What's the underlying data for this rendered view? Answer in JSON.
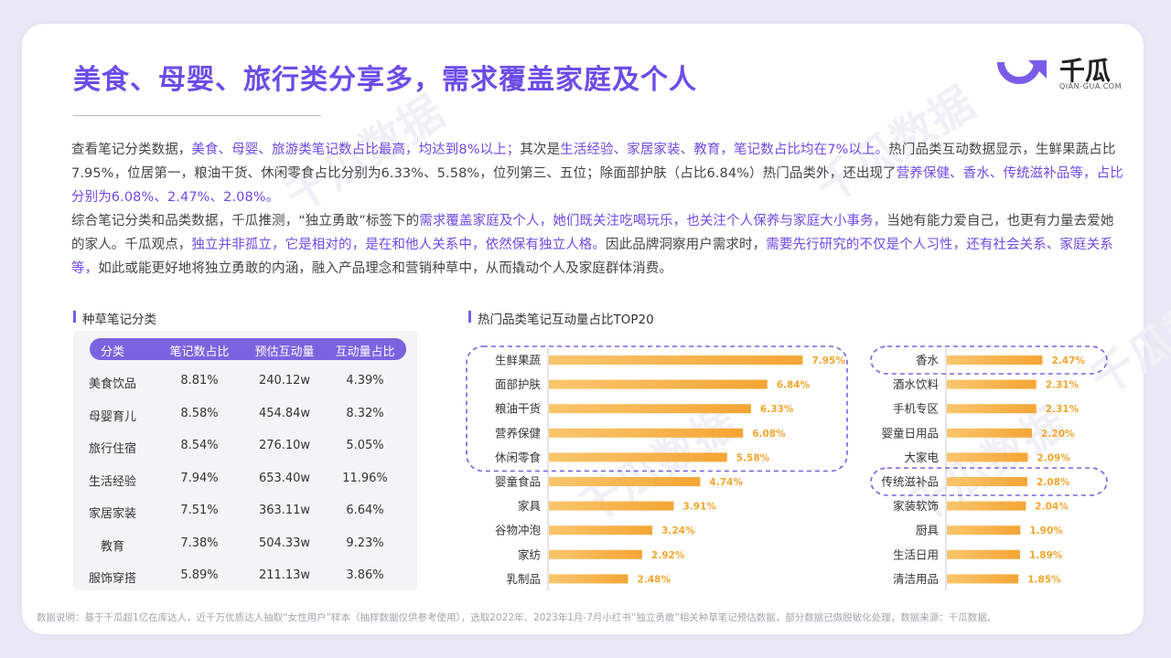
{
  "title": "美食、母婴、旅行类分享多，需求覆盖家庭及个人",
  "logo": {
    "name": "千瓜",
    "domain": "QIAN-GUA.COM"
  },
  "watermark": "千瓜数据",
  "paragraph1": [
    {
      "t": "查看笔记分类数据，",
      "h": false
    },
    {
      "t": "美食、母婴、旅游类笔记数占比最高，均达到8%以上；",
      "h": true
    },
    {
      "t": "其次是",
      "h": false
    },
    {
      "t": "生活经验、家居家装、教育，笔记数占比均在7%以上。",
      "h": true
    },
    {
      "t": "热门品类互动数据显示，生鲜果蔬占比7.95%，位居第一，粮油干货、休闲零食占比分别为6.33%、5.58%，位列第三、五位；除面部护肤（占比6.84%）热门品类外，还出现了",
      "h": false
    },
    {
      "t": "营养保健、香水、传统滋补品等，占比分别为6.08%、2.47%、2.08%。",
      "h": true
    }
  ],
  "paragraph2": [
    {
      "t": "综合笔记分类和品类数据，千瓜推测，“独立勇敢”标签下的",
      "h": false
    },
    {
      "t": "需求覆盖家庭及个人，她们既关注吃喝玩乐，也关注个人保养与家庭大小事务，",
      "h": true
    },
    {
      "t": "当她有能力爱自己，也更有力量去爱她的家人。千瓜观点，",
      "h": false
    },
    {
      "t": "独立并非孤立，它是相对的，是在和他人关系中，依然保有独立人格。",
      "h": true
    },
    {
      "t": "因此品牌洞察用户需求时，",
      "h": false
    },
    {
      "t": "需要先行研究的不仅是个人习性，还有社会关系、家庭关系等，",
      "h": true
    },
    {
      "t": "如此或能更好地将独立勇敢的内涵，融入产品理念和营销种草中，从而撬动个人及家庭群体消费。",
      "h": false
    }
  ],
  "table_section_title": "种草笔记分类",
  "chart_section_title": "热门品类笔记互动量占比TOP20",
  "table": {
    "headers": [
      "分类",
      "笔记数占比",
      "预估互动量",
      "互动量占比"
    ],
    "rows": [
      [
        "美食饮品",
        "8.81%",
        "240.12w",
        "4.39%"
      ],
      [
        "母婴育儿",
        "8.58%",
        "454.84w",
        "8.32%"
      ],
      [
        "旅行住宿",
        "8.54%",
        "276.10w",
        "5.05%"
      ],
      [
        "生活经验",
        "7.94%",
        "653.40w",
        "11.96%"
      ],
      [
        "家居家装",
        "7.51%",
        "363.11w",
        "6.64%"
      ],
      [
        "教育",
        "7.38%",
        "504.33w",
        "9.23%"
      ],
      [
        "服饰穿搭",
        "5.89%",
        "211.13w",
        "3.86%"
      ]
    ]
  },
  "chart_data": [
    {
      "type": "bar",
      "orientation": "horizontal",
      "categories": [
        "生鲜果蔬",
        "面部护肤",
        "粮油干货",
        "营养保健",
        "休闲零食",
        "婴童食品",
        "家具",
        "谷物冲泡",
        "家纺",
        "乳制品"
      ],
      "values": [
        7.95,
        6.84,
        6.33,
        6.08,
        5.58,
        4.74,
        3.91,
        3.24,
        2.92,
        2.48
      ],
      "labels": [
        "7.95%",
        "6.84%",
        "6.33%",
        "6.08%",
        "5.58%",
        "4.74%",
        "3.91%",
        "3.24%",
        "2.92%",
        "2.48%"
      ],
      "highlighted": [
        "生鲜果蔬",
        "面部护肤",
        "粮油干货",
        "营养保健",
        "休闲零食"
      ],
      "bar_color": "#f7b24a",
      "highlight_color": "#7b63e0"
    },
    {
      "type": "bar",
      "orientation": "horizontal",
      "categories": [
        "香水",
        "酒水饮料",
        "手机专区",
        "婴童日用品",
        "大家电",
        "传统滋补品",
        "家装软饰",
        "厨具",
        "生活日用",
        "清洁用品"
      ],
      "values": [
        2.47,
        2.31,
        2.31,
        2.2,
        2.09,
        2.08,
        2.04,
        1.9,
        1.89,
        1.85
      ],
      "labels": [
        "2.47%",
        "2.31%",
        "2.31%",
        "2.20%",
        "2.09%",
        "2.08%",
        "2.04%",
        "1.90%",
        "1.89%",
        "1.85%"
      ],
      "highlighted": [
        "香水",
        "传统滋补品"
      ],
      "bar_color": "#f7b24a",
      "highlight_color": "#7b63e0"
    }
  ],
  "footer": "数据说明：基于千瓜超1亿在库达人，近千万优质达人抽取“女性用户”样本（抽样数据仅供参考使用），选取2022年、2023年1月-7月小红书“独立勇敢”相关种草笔记预估数据，部分数据已做脱敏化处理，数据来源：千瓜数据。"
}
